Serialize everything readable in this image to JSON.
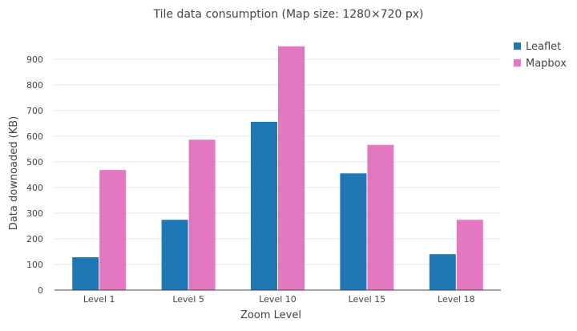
{
  "chart_data": {
    "type": "bar",
    "title": "Tile data consumption (Map size: 1280×720 px)",
    "xlabel": "Zoom Level",
    "ylabel": "Data downoaded (KB)",
    "categories": [
      "Level 1",
      "Level 5",
      "Level 10",
      "Level 15",
      "Level 18"
    ],
    "series": [
      {
        "name": "Leaflet",
        "color": "#1f77b4",
        "values": [
          128,
          274,
          656,
          455,
          140
        ]
      },
      {
        "name": "Mapbox",
        "color": "#e377c2",
        "values": [
          468,
          586,
          950,
          566,
          274
        ]
      }
    ],
    "ylim": [
      0,
      950
    ],
    "yticks": [
      0,
      100,
      200,
      300,
      400,
      500,
      600,
      700,
      800,
      900
    ],
    "grid": true,
    "legend_position": "top-right"
  }
}
